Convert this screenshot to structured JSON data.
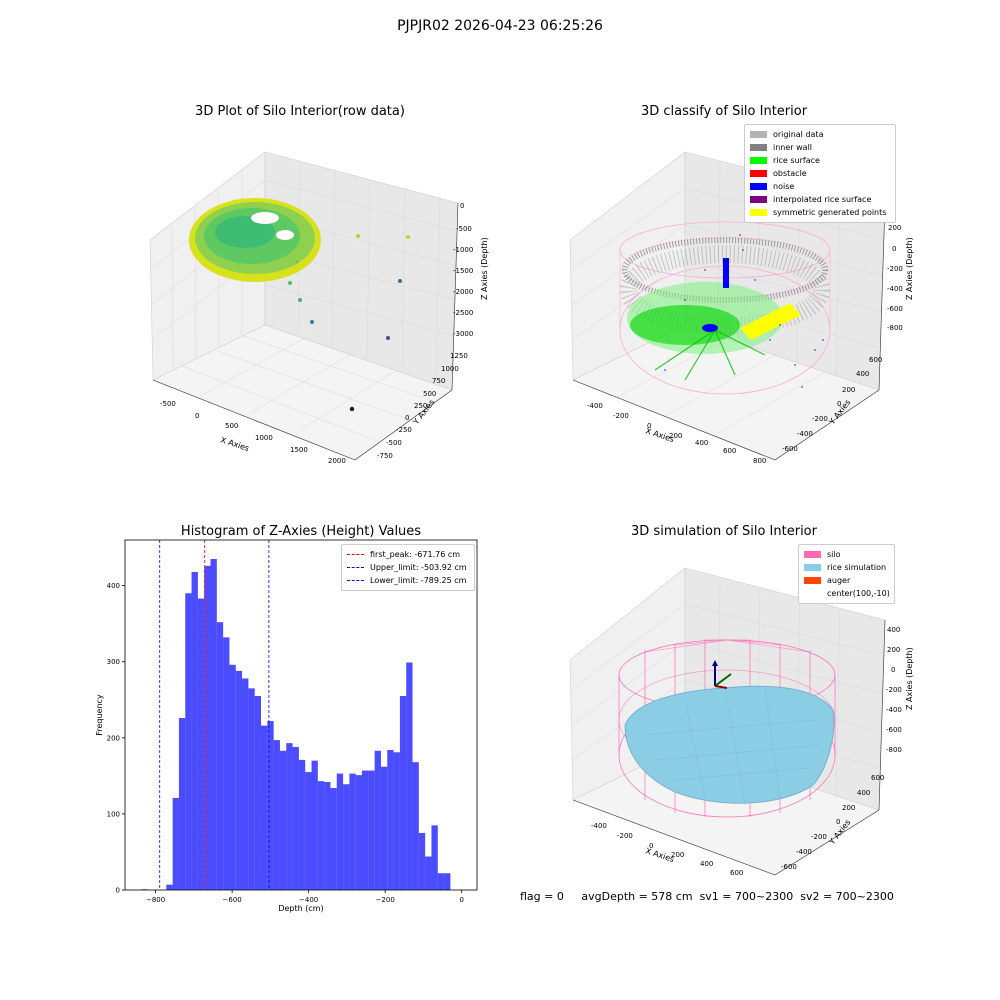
{
  "suptitle": "PJPJR02 2026-04-23 06:25:26",
  "panel1": {
    "title": "3D Plot of Silo Interior(row data)",
    "xlabel": "X Axies",
    "ylabel": "Y Axies",
    "zlabel": "Z Axies (Depth)",
    "xticks": [
      "-500",
      "0",
      "500",
      "1000",
      "1500",
      "2000"
    ],
    "yticks": [
      "1250",
      "1000",
      "750",
      "500",
      "250",
      "0",
      "-250",
      "-500",
      "-750"
    ],
    "zticks": [
      "0",
      "-500",
      "-1000",
      "-1500",
      "-2000",
      "-2500",
      "-3000"
    ]
  },
  "panel2": {
    "title": "3D classify of Silo Interior",
    "xlabel": "X Axies",
    "ylabel": "Y Axies",
    "zlabel": "Z Axies (Depth)",
    "xticks": [
      "-400",
      "-200",
      "0",
      "200",
      "400",
      "600",
      "800"
    ],
    "yticks": [
      "600",
      "400",
      "200",
      "0",
      "-200",
      "-400",
      "-600"
    ],
    "zticks": [
      "200",
      "0",
      "-200",
      "-400",
      "-600",
      "-800"
    ],
    "legend": [
      {
        "label": "original data",
        "color": "#b3b3b3"
      },
      {
        "label": "inner wall",
        "color": "#808080"
      },
      {
        "label": "rice surface",
        "color": "#00ff00"
      },
      {
        "label": "obstacle",
        "color": "#ff0000"
      },
      {
        "label": "noise",
        "color": "#0000ff"
      },
      {
        "label": "interpolated rice surface",
        "color": "#800080"
      },
      {
        "label": "symmetric generated points",
        "color": "#ffff00"
      }
    ]
  },
  "panel3": {
    "title": "Histogram of Z-Axies (Height) Values",
    "legend": [
      {
        "label": "first_peak: -671.76 cm",
        "color": "#ff0000"
      },
      {
        "label": "Upper_limit: -503.92 cm",
        "color": "#0000ff"
      },
      {
        "label": "Lower_limit: -789.25 cm",
        "color": "#0000ff"
      }
    ]
  },
  "panel4": {
    "title": "3D simulation of Silo Interior",
    "xlabel": "X Axies",
    "ylabel": "Y Axies",
    "zlabel": "Z Axies (Depth)",
    "xticks": [
      "-400",
      "-200",
      "0",
      "200",
      "400",
      "600"
    ],
    "yticks": [
      "600",
      "400",
      "200",
      "0",
      "-200",
      "-400",
      "-600"
    ],
    "zticks": [
      "400",
      "200",
      "0",
      "-200",
      "-400",
      "-600",
      "-800"
    ],
    "legend": [
      {
        "label": "silo",
        "color": "#ff69b4"
      },
      {
        "label": "rice simulation",
        "color": "#87ceeb"
      },
      {
        "label": "auger",
        "color": "#ff4500"
      },
      {
        "label": "center(100,-10)",
        "color": ""
      }
    ]
  },
  "status": {
    "flag": "flag = 0",
    "avg": "avgDepth = 578 cm",
    "sv1": "sv1 = 700~2300",
    "sv2": "sv2 = 700~2300"
  },
  "chart_data": {
    "type": "bar",
    "title": "Histogram of Z-Axies (Height) Values",
    "xlabel": "Depth (cm)",
    "ylabel": "Frequency",
    "xlim": [
      -880,
      40
    ],
    "ylim": [
      0,
      460
    ],
    "xticks": [
      -800,
      -600,
      -400,
      -200,
      0
    ],
    "yticks": [
      0,
      100,
      200,
      300,
      400
    ],
    "bin_width": 16.5,
    "bin_start": -838,
    "values": [
      1,
      0,
      0,
      0,
      7,
      121,
      226,
      390,
      418,
      383,
      426,
      435,
      352,
      332,
      296,
      288,
      278,
      265,
      255,
      216,
      222,
      197,
      183,
      193,
      188,
      171,
      155,
      170,
      143,
      142,
      134,
      153,
      139,
      153,
      151,
      157,
      157,
      183,
      162,
      184,
      181,
      255,
      299,
      168,
      75,
      44,
      85,
      22,
      22
    ],
    "color": "#0000ff",
    "vlines": [
      {
        "x": -671.76,
        "color": "#ff0000"
      },
      {
        "x": -503.92,
        "color": "#0000ff"
      },
      {
        "x": -789.25,
        "color": "#0000ff"
      }
    ]
  }
}
